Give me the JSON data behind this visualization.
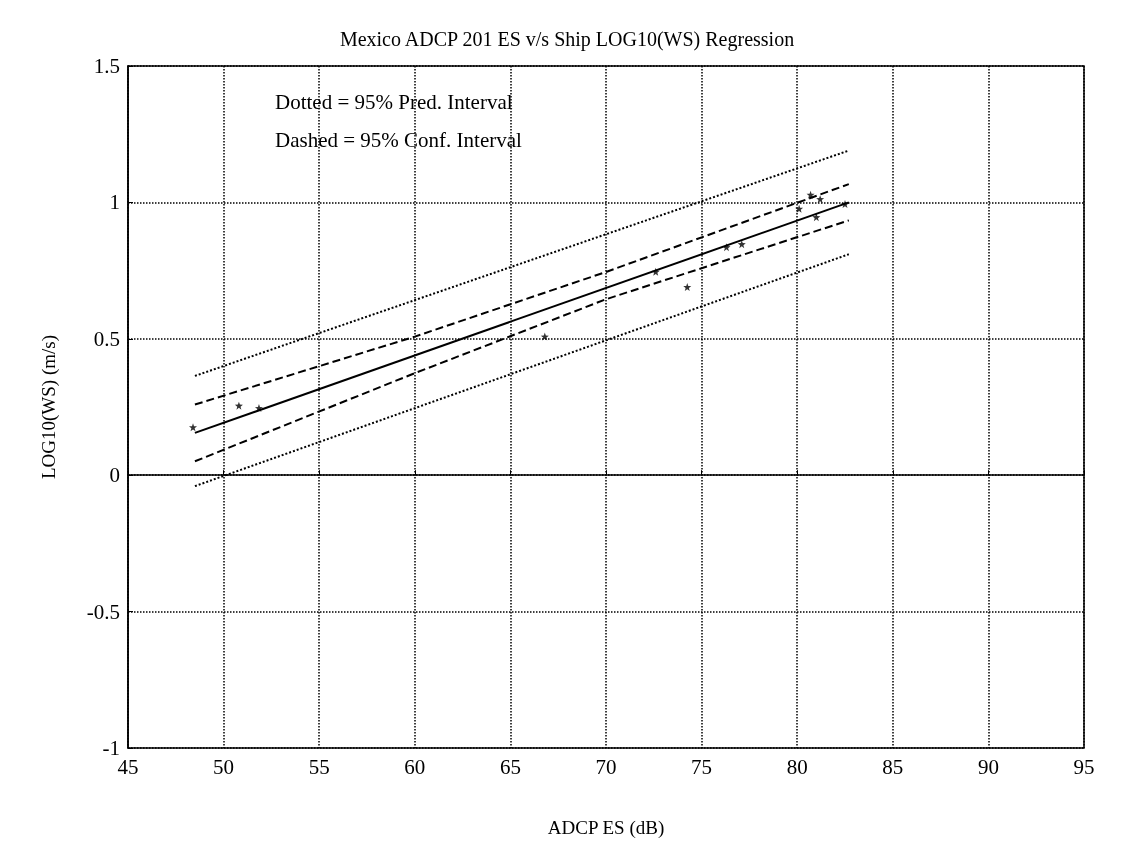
{
  "chart_data": {
    "type": "scatter",
    "title": "Mexico ADCP 201 ES v/s Ship LOG10(WS) Regression",
    "xlabel": "ADCP ES (dB)",
    "ylabel": "LOG10(WS) (m/s)",
    "annotations": [
      "Dotted = 95% Pred. Interval",
      "Dashed = 95% Conf. Interval"
    ],
    "xlim": [
      45,
      95
    ],
    "xticks": [
      45,
      50,
      55,
      60,
      65,
      70,
      75,
      80,
      85,
      90,
      95
    ],
    "ylim": [
      -1,
      1.5
    ],
    "yticks": [
      -1,
      -0.5,
      0,
      0.5,
      1,
      1.5
    ],
    "grid": true,
    "series": [
      {
        "color": "#000000",
        "marker": "star",
        "x": [
          48.4,
          50.8,
          51.85,
          66.8,
          72.6,
          74.25,
          76.3,
          77.1,
          80.1,
          80.7,
          81.2,
          81.0,
          82.5
        ],
        "values": [
          0.176,
          0.255,
          0.246,
          0.508,
          0.746,
          0.69,
          0.836,
          0.847,
          0.977,
          1.028,
          1.012,
          0.946,
          0.994
        ]
      },
      {
        "type": "line",
        "color": "#000000",
        "marker": "none",
        "line_style": "solid",
        "x": [
          48.5,
          82.7
        ],
        "values": [
          0.155,
          1.0
        ]
      },
      {
        "type": "line",
        "color": "#000000",
        "marker": "none",
        "line_style": "dashed",
        "x": [
          48.5,
          60,
          70,
          82.7
        ],
        "values": [
          0.259,
          0.508,
          0.745,
          1.067
        ]
      },
      {
        "type": "line",
        "color": "#000000",
        "marker": "none",
        "line_style": "dashed",
        "x": [
          48.5,
          60,
          70,
          82.7
        ],
        "values": [
          0.051,
          0.374,
          0.645,
          0.934
        ]
      },
      {
        "type": "line",
        "color": "#000000",
        "marker": "none",
        "line_style": "dotted",
        "x": [
          48.5,
          82.7
        ],
        "values": [
          0.364,
          1.19
        ]
      },
      {
        "type": "line",
        "color": "#000000",
        "marker": "none",
        "line_style": "dotted",
        "x": [
          48.5,
          82.7
        ],
        "values": [
          -0.04,
          0.81
        ]
      }
    ]
  }
}
